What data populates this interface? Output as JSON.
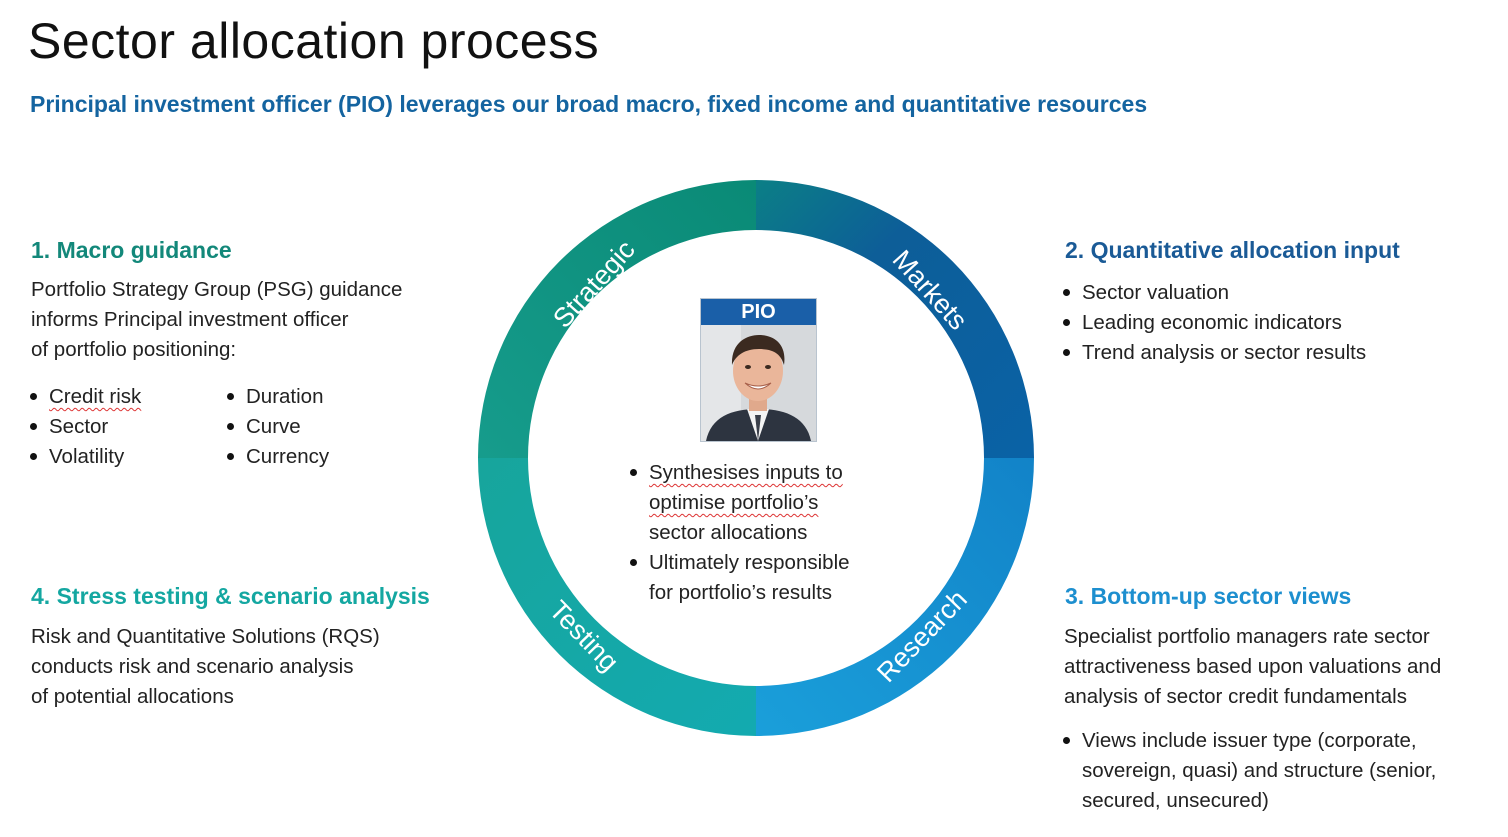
{
  "title": "Sector allocation process",
  "subtitle": "Principal investment officer (PIO) leverages our broad macro, fixed income and quantitative resources",
  "colors": {
    "teal": "#13887a",
    "teal_light": "#14a7a1",
    "blue_dark": "#1a5a96",
    "blue_light": "#1d8fcf",
    "subtitle": "#1464a0"
  },
  "cycle": {
    "labels": [
      "Strategic",
      "Markets",
      "Research",
      "Testing"
    ],
    "center": {
      "badge": "PIO",
      "photo_icon": "person-portrait-icon",
      "bullets": [
        {
          "line1": "Synthesises inputs to",
          "line2": "optimise portfolio’s",
          "line3": "sector allocations"
        },
        {
          "line1": "Ultimately responsible",
          "line2": "for portfolio’s results"
        }
      ]
    }
  },
  "section1": {
    "heading": "1. Macro guidance",
    "lines": [
      "Portfolio Strategy Group (PSG) guidance",
      "informs Principal investment officer",
      "of portfolio positioning:"
    ],
    "bullets_left": [
      "Credit risk",
      "Sector",
      "Volatility"
    ],
    "bullets_right": [
      "Duration",
      "Curve",
      "Currency"
    ]
  },
  "section2": {
    "heading": "2. Quantitative allocation input",
    "bullets": [
      "Sector valuation",
      "Leading economic indicators",
      "Trend analysis or sector results"
    ]
  },
  "section3": {
    "heading": "3. Bottom-up sector views",
    "lines": [
      "Specialist portfolio managers rate sector",
      "attractiveness based upon valuations and",
      "analysis of sector credit fundamentals"
    ],
    "bullet_lines": [
      "Views include issuer type (corporate,",
      "sovereign, quasi) and structure (senior,",
      "secured, unsecured)"
    ]
  },
  "section4": {
    "heading": "4. Stress testing & scenario analysis",
    "lines": [
      "Risk and Quantitative Solutions (RQS)",
      "conducts risk and scenario analysis",
      "of potential allocations"
    ]
  }
}
